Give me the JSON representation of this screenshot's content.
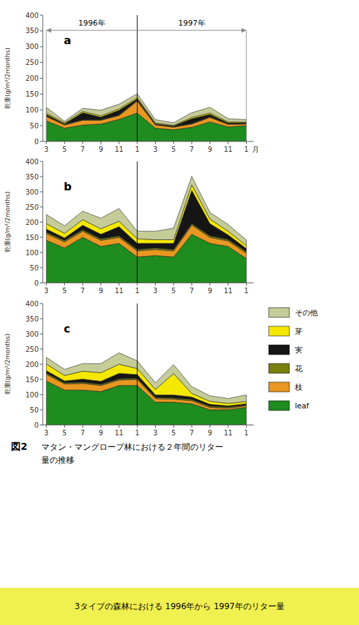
{
  "chart_data": [
    {
      "type": "area",
      "stacked": true,
      "title": "a",
      "categories": [
        "3",
        "5",
        "7",
        "9",
        "11",
        "1",
        "3",
        "5",
        "7",
        "9",
        "11",
        "1"
      ],
      "xlabel": "月",
      "ylabel": "乾重(g/m²/2months)",
      "ylim": [
        0,
        400
      ],
      "yticks": [
        0,
        50,
        100,
        150,
        200,
        250,
        300,
        350,
        400
      ],
      "annotations": [
        {
          "text": "1996年",
          "from": 0,
          "to": 5
        },
        {
          "text": "1997年",
          "from": 5,
          "to": 11
        }
      ],
      "series": [
        {
          "name": "leaf",
          "color": "#1e8c1e",
          "values": [
            65,
            42,
            52,
            55,
            70,
            90,
            42,
            37,
            45,
            62,
            46,
            50
          ]
        },
        {
          "name": "枝",
          "color": "#e89820",
          "values": [
            14,
            10,
            15,
            12,
            12,
            38,
            10,
            8,
            10,
            14,
            8,
            5
          ]
        },
        {
          "name": "花",
          "color": "#7a8010",
          "values": [
            2,
            2,
            2,
            2,
            2,
            2,
            2,
            2,
            2,
            2,
            2,
            2
          ]
        },
        {
          "name": "実",
          "color": "#151515",
          "values": [
            5,
            2,
            22,
            8,
            15,
            5,
            2,
            2,
            15,
            8,
            3,
            2
          ]
        },
        {
          "name": "芽",
          "color": "#f5e800",
          "values": [
            4,
            3,
            4,
            4,
            4,
            4,
            3,
            2,
            4,
            4,
            3,
            2
          ]
        },
        {
          "name": "その他",
          "color": "#c5cc98",
          "values": [
            18,
            5,
            10,
            18,
            15,
            12,
            10,
            8,
            15,
            18,
            10,
            8
          ]
        }
      ]
    },
    {
      "type": "area",
      "stacked": true,
      "title": "b",
      "categories": [
        "3",
        "5",
        "7",
        "9",
        "11",
        "1",
        "3",
        "5",
        "7",
        "9",
        "11",
        "1"
      ],
      "ylabel": "乾重(g/m²/2months)",
      "ylim": [
        0,
        400
      ],
      "yticks": [
        0,
        50,
        100,
        150,
        200,
        250,
        300,
        350,
        400
      ],
      "series": [
        {
          "name": "leaf",
          "color": "#1e8c1e",
          "values": [
            140,
            115,
            150,
            120,
            130,
            85,
            90,
            85,
            160,
            130,
            120,
            80
          ]
        },
        {
          "name": "枝",
          "color": "#e89820",
          "values": [
            22,
            20,
            20,
            20,
            20,
            20,
            20,
            20,
            30,
            20,
            18,
            18
          ]
        },
        {
          "name": "花",
          "color": "#7a8010",
          "values": [
            5,
            5,
            5,
            5,
            5,
            5,
            5,
            5,
            5,
            5,
            5,
            5
          ]
        },
        {
          "name": "実",
          "color": "#151515",
          "values": [
            10,
            8,
            15,
            15,
            30,
            20,
            15,
            20,
            110,
            40,
            15,
            10
          ]
        },
        {
          "name": "芽",
          "color": "#f5e800",
          "values": [
            18,
            15,
            18,
            18,
            18,
            15,
            12,
            12,
            18,
            15,
            12,
            10
          ]
        },
        {
          "name": "その他",
          "color": "#c5cc98",
          "values": [
            30,
            25,
            28,
            35,
            42,
            25,
            28,
            38,
            28,
            22,
            22,
            18
          ]
        }
      ]
    },
    {
      "type": "area",
      "stacked": true,
      "title": "c",
      "legend": "right",
      "categories": [
        "3",
        "5",
        "7",
        "9",
        "11",
        "1",
        "3",
        "5",
        "7",
        "9",
        "11",
        "1"
      ],
      "ylabel": "乾重(g/m²/2months)",
      "ylim": [
        0,
        400
      ],
      "yticks": [
        0,
        50,
        100,
        150,
        200,
        250,
        300,
        350,
        400
      ],
      "series": [
        {
          "name": "leaf",
          "color": "#1e8c1e",
          "values": [
            145,
            115,
            115,
            110,
            130,
            130,
            75,
            75,
            70,
            50,
            50,
            58
          ]
        },
        {
          "name": "枝",
          "color": "#e89820",
          "values": [
            22,
            20,
            22,
            20,
            18,
            20,
            12,
            10,
            10,
            8,
            5,
            5
          ]
        },
        {
          "name": "花",
          "color": "#7a8010",
          "values": [
            4,
            4,
            4,
            4,
            4,
            4,
            4,
            4,
            4,
            4,
            4,
            3
          ]
        },
        {
          "name": "実",
          "color": "#151515",
          "values": [
            8,
            6,
            10,
            10,
            18,
            12,
            8,
            10,
            8,
            6,
            4,
            4
          ]
        },
        {
          "name": "芽",
          "color": "#f5e800",
          "values": [
            22,
            18,
            26,
            28,
            30,
            20,
            18,
            70,
            12,
            10,
            8,
            7
          ]
        },
        {
          "name": "その他",
          "color": "#c5cc98",
          "values": [
            22,
            20,
            25,
            30,
            38,
            25,
            22,
            30,
            22,
            18,
            16,
            22
          ]
        }
      ]
    }
  ],
  "caption_label": "図2",
  "caption": "マタン・マングローブ林における２年間のリター\n量の推移",
  "footnote": "3タイプの森林における 1996年から 1997年のリター量",
  "footnote_color": "#f0f050"
}
